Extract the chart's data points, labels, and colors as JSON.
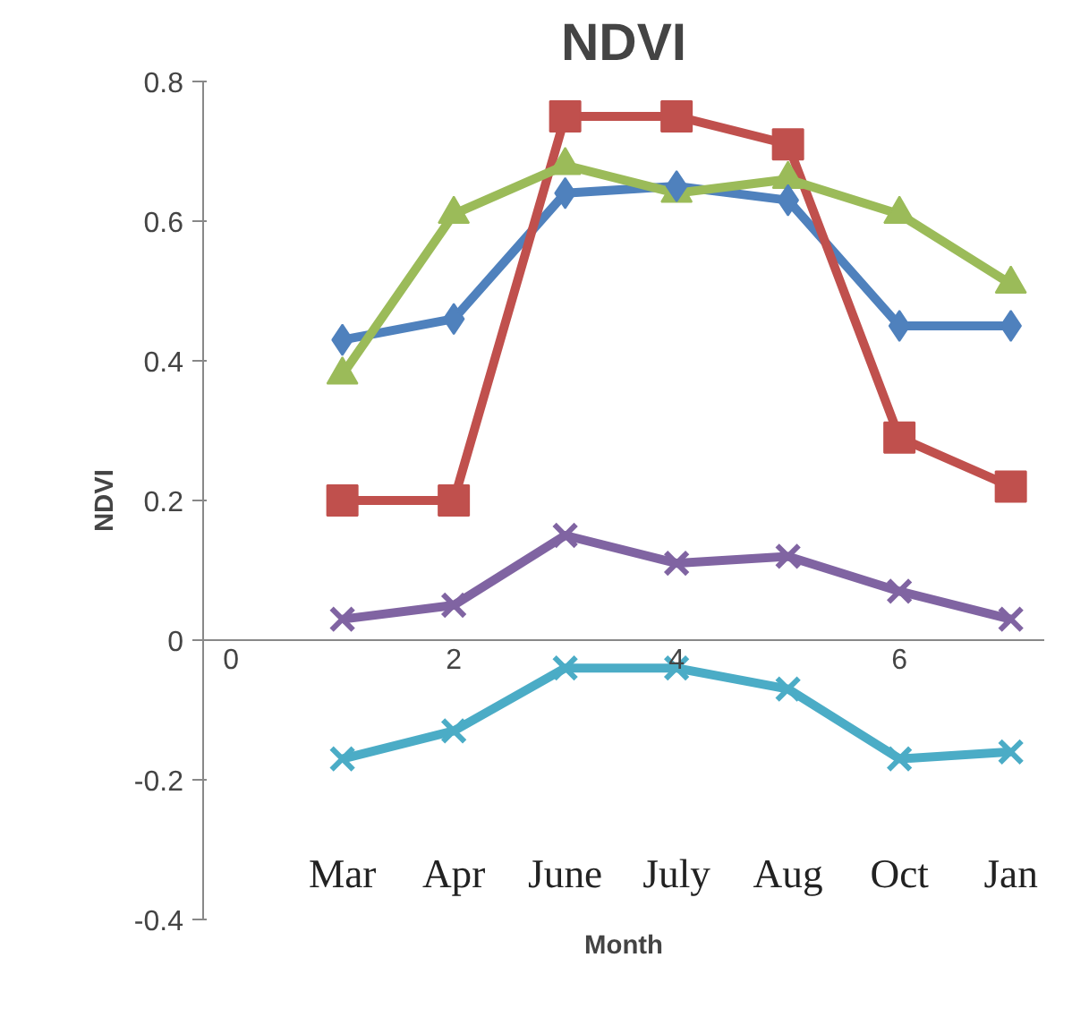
{
  "chart_data": {
    "type": "line",
    "title": "NDVI",
    "xlabel": "Month",
    "ylabel": "NDVI",
    "x": [
      1,
      2,
      3,
      4,
      5,
      6,
      7
    ],
    "series": [
      {
        "color": "#4f81bd",
        "marker": "diamond",
        "values": [
          0.43,
          0.46,
          0.64,
          0.65,
          0.63,
          0.45,
          0.45
        ]
      },
      {
        "color": "#c0504d",
        "marker": "square",
        "values": [
          0.2,
          0.2,
          0.75,
          0.75,
          0.71,
          0.29,
          0.22
        ]
      },
      {
        "color": "#9bbb59",
        "marker": "triangle",
        "values": [
          0.38,
          0.61,
          0.68,
          0.64,
          0.66,
          0.61,
          0.51
        ]
      },
      {
        "color": "#8064a2",
        "marker": "cross",
        "values": [
          0.03,
          0.05,
          0.15,
          0.11,
          0.12,
          0.07,
          0.03
        ]
      },
      {
        "color": "#4bacc6",
        "marker": "cross",
        "values": [
          -0.17,
          -0.13,
          -0.04,
          -0.04,
          -0.07,
          -0.17,
          -0.16
        ]
      }
    ],
    "xlim": [
      -0.25,
      7.3
    ],
    "ylim": [
      -0.4,
      0.8
    ],
    "xticks": [
      0,
      2,
      4,
      6
    ],
    "yticks": [
      {
        "value": -0.4,
        "label": "-0.4"
      },
      {
        "value": -0.2,
        "label": "-0.2"
      },
      0,
      {
        "value": 0.2,
        "label": "0.2"
      },
      {
        "value": 0.4,
        "label": "0.4"
      },
      {
        "value": 0.6,
        "label": "0.6"
      },
      {
        "value": 0.8,
        "label": "0.8"
      }
    ],
    "annotations": [
      "Mar",
      "Apr",
      "June",
      "July",
      "Aug",
      "Oct",
      "Jan"
    ],
    "grid": false,
    "line_style": "solid"
  }
}
